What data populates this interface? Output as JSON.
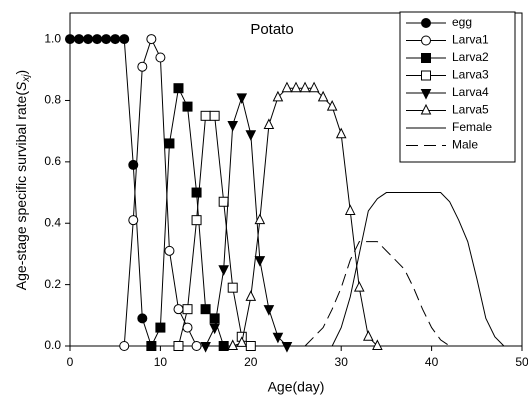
{
  "chart_data": {
    "type": "line",
    "title": "Potato",
    "x_label": "Age(day)",
    "y_label": {
      "text": "Age-stage specific survibal rate(",
      "symbol": "S",
      "subscript": "xj",
      "close": ")"
    },
    "xlim": [
      0,
      50
    ],
    "xticks": [
      0,
      10,
      20,
      30,
      40,
      50
    ],
    "ylim": [
      0,
      1.085
    ],
    "yticks": [
      {
        "value": 0,
        "label": "0.0"
      },
      0.2,
      0.4,
      0.6,
      0.8,
      {
        "value": 1,
        "label": "1.0"
      }
    ],
    "legend": "upper right",
    "series": [
      {
        "name": "egg",
        "color": "#000000",
        "marker": "circle",
        "filled": true,
        "linestyle": "solid",
        "x": [
          0,
          1,
          2,
          3,
          4,
          5,
          6,
          7,
          8,
          9
        ],
        "values": [
          1,
          1,
          1,
          1,
          1,
          1,
          1,
          0.59,
          0.09,
          0
        ]
      },
      {
        "name": "Larva1",
        "color": "#000000",
        "marker": "circle",
        "filled": false,
        "linestyle": "solid",
        "x": [
          6,
          7,
          8,
          9,
          10,
          11,
          12,
          13,
          14
        ],
        "values": [
          0,
          0.41,
          0.91,
          1,
          0.94,
          0.31,
          0.12,
          0.06,
          0
        ]
      },
      {
        "name": "Larva2",
        "color": "#000000",
        "marker": "square",
        "filled": true,
        "linestyle": "solid",
        "x": [
          9,
          10,
          11,
          12,
          13,
          14,
          15,
          16,
          17
        ],
        "values": [
          0,
          0.06,
          0.66,
          0.84,
          0.78,
          0.5,
          0.12,
          0.09,
          0
        ]
      },
      {
        "name": "Larva3",
        "color": "#000000",
        "marker": "square",
        "filled": false,
        "linestyle": "solid",
        "x": [
          12,
          13,
          14,
          15,
          16,
          17,
          18,
          19,
          20
        ],
        "values": [
          0,
          0.12,
          0.41,
          0.75,
          0.75,
          0.47,
          0.19,
          0.03,
          0
        ]
      },
      {
        "name": "Larva4",
        "color": "#000000",
        "marker": "triangle-down",
        "filled": true,
        "linestyle": "solid",
        "x": [
          15,
          16,
          17,
          18,
          19,
          20,
          21,
          22,
          23,
          24
        ],
        "values": [
          0,
          0.06,
          0.25,
          0.72,
          0.81,
          0.69,
          0.28,
          0.12,
          0.03,
          0
        ]
      },
      {
        "name": "Larva5",
        "color": "#000000",
        "marker": "triangle-up",
        "filled": false,
        "linestyle": "solid",
        "x": [
          18,
          19,
          20,
          21,
          22,
          23,
          24,
          25,
          26,
          27,
          28,
          29,
          30,
          31,
          32,
          33,
          34
        ],
        "values": [
          0,
          0.01,
          0.16,
          0.41,
          0.72,
          0.81,
          0.84,
          0.84,
          0.84,
          0.84,
          0.81,
          0.78,
          0.69,
          0.44,
          0.19,
          0.03,
          0
        ]
      },
      {
        "name": "Female",
        "color": "#000000",
        "marker": "none",
        "filled": false,
        "linestyle": "solid",
        "x": [
          29,
          30,
          31,
          32,
          33,
          34,
          35,
          41,
          42,
          43,
          44,
          45,
          46,
          47,
          48
        ],
        "values": [
          0,
          0.06,
          0.16,
          0.3,
          0.44,
          0.48,
          0.5,
          0.5,
          0.47,
          0.41,
          0.34,
          0.22,
          0.09,
          0.03,
          0
        ]
      },
      {
        "name": "Male",
        "color": "#000000",
        "marker": "none",
        "filled": false,
        "linestyle": "dashed",
        "x": [
          26,
          27,
          28,
          29,
          30,
          31,
          32,
          34,
          35,
          36,
          37,
          38,
          39,
          40,
          41,
          42
        ],
        "values": [
          0,
          0.03,
          0.06,
          0.12,
          0.19,
          0.28,
          0.34,
          0.34,
          0.31,
          0.28,
          0.25,
          0.19,
          0.12,
          0.06,
          0.02,
          0
        ]
      }
    ]
  }
}
